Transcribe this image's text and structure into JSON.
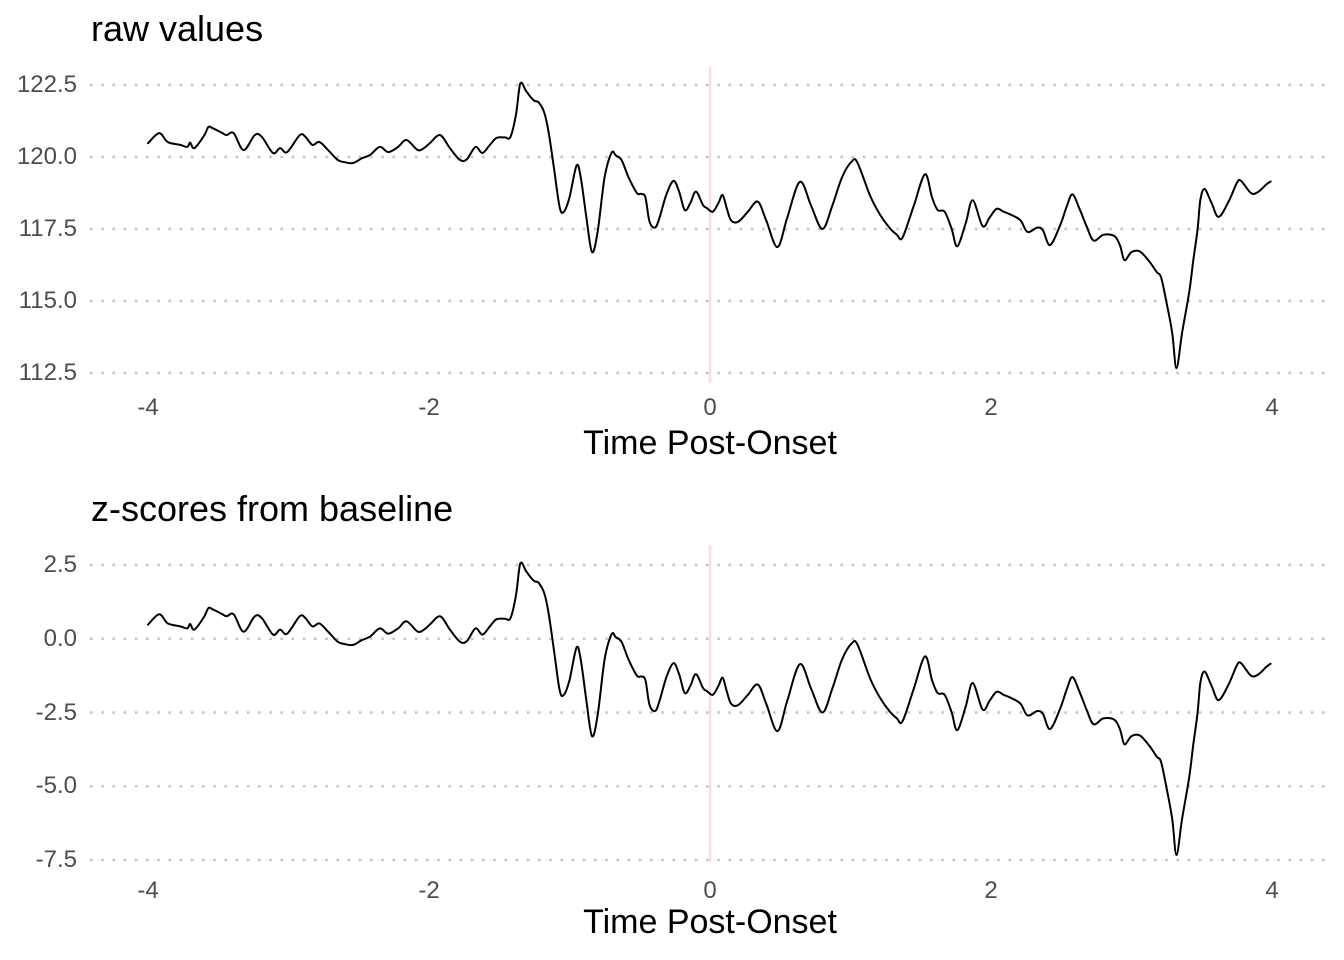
{
  "page": {
    "background": "#ffffff"
  },
  "colors": {
    "series_line": "#000000",
    "gridline": "#c4c4c4",
    "zero_time_marker": "#fcdcdc",
    "tick_label_text": "#4d4d4d",
    "title_text": "#000000"
  },
  "chart_data": [
    {
      "type": "line",
      "title": "raw values",
      "xlabel": "Time Post-Onset",
      "ylabel": "",
      "legend": "none",
      "grid": "horizontal-dotted",
      "vline_x": 0,
      "x_ticks": [
        -4,
        -2,
        0,
        2,
        4
      ],
      "x_tick_labels": [
        "-4",
        "-2",
        "0",
        "2",
        "4"
      ],
      "y_ticks": [
        122.5,
        120.0,
        117.5,
        115.0,
        112.5
      ],
      "y_tick_labels": [
        "122.5",
        "120.0",
        "117.5",
        "115.0",
        "112.5"
      ],
      "xlim": [
        -4.43,
        4.42
      ],
      "ylim": [
        112.1,
        123.2
      ],
      "x": [
        -4,
        -3.92,
        -3.86,
        -3.77,
        -3.72,
        -3.7,
        -3.67,
        -3.6,
        -3.57,
        -3.54,
        -3.47,
        -3.44,
        -3.39,
        -3.32,
        -3.24,
        -3.19,
        -3.11,
        -3.06,
        -3.01,
        -2.92,
        -2.88,
        -2.83,
        -2.78,
        -2.72,
        -2.65,
        -2.6,
        -2.54,
        -2.48,
        -2.42,
        -2.35,
        -2.29,
        -2.22,
        -2.16,
        -2.08,
        -2.03,
        -1.99,
        -1.92,
        -1.85,
        -1.78,
        -1.73,
        -1.67,
        -1.62,
        -1.57,
        -1.52,
        -1.46,
        -1.42,
        -1.38,
        -1.35,
        -1.31,
        -1.28,
        -1.25,
        -1.22,
        -1.18,
        -1.15,
        -1.11,
        -1.07,
        -1.04,
        -1,
        -0.95,
        -0.92,
        -0.88,
        -0.84,
        -0.8,
        -0.75,
        -0.7,
        -0.67,
        -0.63,
        -0.58,
        -0.52,
        -0.49,
        -0.46,
        -0.43,
        -0.39,
        -0.36,
        -0.31,
        -0.26,
        -0.22,
        -0.18,
        -0.14,
        -0.1,
        -0.05,
        -0.02,
        0.02,
        0.06,
        0.09,
        0.12,
        0.15,
        0.2,
        0.27,
        0.34,
        0.4,
        0.48,
        0.55,
        0.64,
        0.72,
        0.8,
        0.87,
        0.94,
        1.01,
        1.05,
        1.14,
        1.21,
        1.28,
        1.33,
        1.37,
        1.45,
        1.53,
        1.58,
        1.62,
        1.67,
        1.72,
        1.76,
        1.82,
        1.87,
        1.94,
        1.99,
        2.04,
        2.09,
        2.14,
        2.21,
        2.26,
        2.33,
        2.37,
        2.42,
        2.49,
        2.54,
        2.58,
        2.63,
        2.68,
        2.73,
        2.8,
        2.88,
        2.92,
        2.95,
        3,
        3.06,
        3.13,
        3.18,
        3.21,
        3.25,
        3.29,
        3.32,
        3.36,
        3.41,
        3.44,
        3.47,
        3.49,
        3.52,
        3.57,
        3.62,
        3.69,
        3.75,
        3.78,
        3.85,
        3.9,
        3.96,
        3.99
      ],
      "values": [
        120.48,
        120.83,
        120.52,
        120.42,
        120.35,
        120.5,
        120.31,
        120.75,
        121.04,
        121,
        120.83,
        120.76,
        120.83,
        120.24,
        120.76,
        120.7,
        120.14,
        120.31,
        120.17,
        120.76,
        120.7,
        120.42,
        120.52,
        120.25,
        119.9,
        119.82,
        119.79,
        119.95,
        120.07,
        120.35,
        120.17,
        120.35,
        120.59,
        120.24,
        120.33,
        120.5,
        120.76,
        120.3,
        119.9,
        119.92,
        120.35,
        120.14,
        120.4,
        120.66,
        120.68,
        120.7,
        121.5,
        122.55,
        122.3,
        122.1,
        121.95,
        121.9,
        121.55,
        120.9,
        119.6,
        118.25,
        118.1,
        118.6,
        119.7,
        119.3,
        117.9,
        116.7,
        117.4,
        119.3,
        120.15,
        120.05,
        119.9,
        119.3,
        118.75,
        118.72,
        118.6,
        117.75,
        117.55,
        117.88,
        118.7,
        119.17,
        118.8,
        118.16,
        118.4,
        118.8,
        118.33,
        118.22,
        118.1,
        118.4,
        118.68,
        118.2,
        117.8,
        117.75,
        118.1,
        118.45,
        117.8,
        116.87,
        117.9,
        119.14,
        118.3,
        117.5,
        118.3,
        119.3,
        119.85,
        119.8,
        118.65,
        118,
        117.53,
        117.3,
        117.2,
        118.3,
        119.4,
        118.6,
        118.16,
        118.1,
        117.5,
        116.9,
        117.7,
        118.5,
        117.6,
        117.9,
        118.2,
        118.1,
        118,
        117.8,
        117.4,
        117.55,
        117.45,
        116.94,
        117.6,
        118.3,
        118.7,
        118.2,
        117.6,
        117.1,
        117.3,
        117.25,
        116.9,
        116.42,
        116.7,
        116.72,
        116.35,
        116,
        115.83,
        114.93,
        113.89,
        112.67,
        113.9,
        115.28,
        116.42,
        117.47,
        118.5,
        118.89,
        118.4,
        117.92,
        118.44,
        119.1,
        119.17,
        118.75,
        118.78,
        119.05,
        119.15
      ]
    },
    {
      "type": "line",
      "title": "z-scores from baseline",
      "xlabel": "Time Post-Onset",
      "ylabel": "",
      "legend": "none",
      "grid": "horizontal-dotted",
      "vline_x": 0,
      "x_ticks": [
        -4,
        -2,
        0,
        2,
        4
      ],
      "x_tick_labels": [
        "-4",
        "-2",
        "0",
        "2",
        "4"
      ],
      "y_ticks": [
        2.5,
        0.0,
        -2.5,
        -5.0,
        -7.5
      ],
      "y_tick_labels": [
        "2.5",
        "0.0",
        "-2.5",
        "-5.0",
        "-7.5"
      ],
      "xlim": [
        -4.43,
        4.42
      ],
      "ylim": [
        -7.9,
        3.2
      ],
      "x": [
        -4,
        -3.92,
        -3.86,
        -3.77,
        -3.72,
        -3.7,
        -3.67,
        -3.6,
        -3.57,
        -3.54,
        -3.47,
        -3.44,
        -3.39,
        -3.32,
        -3.24,
        -3.19,
        -3.11,
        -3.06,
        -3.01,
        -2.92,
        -2.88,
        -2.83,
        -2.78,
        -2.72,
        -2.65,
        -2.6,
        -2.54,
        -2.48,
        -2.42,
        -2.35,
        -2.29,
        -2.22,
        -2.16,
        -2.08,
        -2.03,
        -1.99,
        -1.92,
        -1.85,
        -1.78,
        -1.73,
        -1.67,
        -1.62,
        -1.57,
        -1.52,
        -1.46,
        -1.42,
        -1.38,
        -1.35,
        -1.31,
        -1.28,
        -1.25,
        -1.22,
        -1.18,
        -1.15,
        -1.11,
        -1.07,
        -1.04,
        -1,
        -0.95,
        -0.92,
        -0.88,
        -0.84,
        -0.8,
        -0.75,
        -0.7,
        -0.67,
        -0.63,
        -0.58,
        -0.52,
        -0.49,
        -0.46,
        -0.43,
        -0.39,
        -0.36,
        -0.31,
        -0.26,
        -0.22,
        -0.18,
        -0.14,
        -0.1,
        -0.05,
        -0.02,
        0.02,
        0.06,
        0.09,
        0.12,
        0.15,
        0.2,
        0.27,
        0.34,
        0.4,
        0.48,
        0.55,
        0.64,
        0.72,
        0.8,
        0.87,
        0.94,
        1.01,
        1.05,
        1.14,
        1.21,
        1.28,
        1.33,
        1.37,
        1.45,
        1.53,
        1.58,
        1.62,
        1.67,
        1.72,
        1.76,
        1.82,
        1.87,
        1.94,
        1.99,
        2.04,
        2.09,
        2.14,
        2.21,
        2.26,
        2.33,
        2.37,
        2.42,
        2.49,
        2.54,
        2.58,
        2.63,
        2.68,
        2.73,
        2.8,
        2.88,
        2.92,
        2.95,
        3,
        3.06,
        3.13,
        3.18,
        3.21,
        3.25,
        3.29,
        3.32,
        3.36,
        3.41,
        3.44,
        3.47,
        3.49,
        3.52,
        3.57,
        3.62,
        3.69,
        3.75,
        3.78,
        3.85,
        3.9,
        3.96,
        3.99
      ],
      "values": [
        0.48,
        0.83,
        0.52,
        0.42,
        0.35,
        0.5,
        0.31,
        0.75,
        1.04,
        1,
        0.83,
        0.76,
        0.83,
        0.24,
        0.76,
        0.7,
        0.14,
        0.31,
        0.17,
        0.76,
        0.7,
        0.42,
        0.52,
        0.25,
        -0.1,
        -0.18,
        -0.21,
        -0.05,
        0.07,
        0.35,
        0.17,
        0.35,
        0.59,
        0.24,
        0.33,
        0.5,
        0.76,
        0.3,
        -0.1,
        -0.08,
        0.35,
        0.14,
        0.4,
        0.66,
        0.68,
        0.7,
        1.5,
        2.55,
        2.3,
        2.1,
        1.95,
        1.9,
        1.55,
        0.9,
        -0.4,
        -1.75,
        -1.9,
        -1.4,
        -0.3,
        -0.7,
        -2.1,
        -3.3,
        -2.6,
        -0.7,
        0.15,
        0.05,
        -0.1,
        -0.7,
        -1.25,
        -1.28,
        -1.4,
        -2.25,
        -2.45,
        -2.12,
        -1.3,
        -0.83,
        -1.2,
        -1.84,
        -1.6,
        -1.2,
        -1.67,
        -1.78,
        -1.9,
        -1.6,
        -1.32,
        -1.8,
        -2.2,
        -2.25,
        -1.9,
        -1.55,
        -2.2,
        -3.13,
        -2.1,
        -0.86,
        -1.7,
        -2.5,
        -1.7,
        -0.7,
        -0.15,
        -0.2,
        -1.35,
        -2,
        -2.47,
        -2.7,
        -2.8,
        -1.7,
        -0.6,
        -1.4,
        -1.84,
        -1.9,
        -2.5,
        -3.1,
        -2.3,
        -1.5,
        -2.4,
        -2.1,
        -1.8,
        -1.9,
        -2,
        -2.2,
        -2.6,
        -2.45,
        -2.55,
        -3.06,
        -2.4,
        -1.7,
        -1.3,
        -1.8,
        -2.4,
        -2.9,
        -2.7,
        -2.75,
        -3.1,
        -3.58,
        -3.3,
        -3.28,
        -3.65,
        -4,
        -4.17,
        -5.07,
        -6.11,
        -7.33,
        -6.1,
        -4.72,
        -3.58,
        -2.53,
        -1.5,
        -1.11,
        -1.6,
        -2.08,
        -1.56,
        -0.9,
        -0.83,
        -1.25,
        -1.22,
        -0.95,
        -0.85
      ]
    }
  ]
}
